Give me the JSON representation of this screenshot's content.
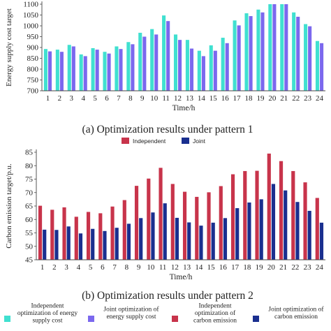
{
  "chart_data": [
    {
      "type": "bar",
      "caption": "(a) Optimization results under pattern 1",
      "xlabel": "Time/h",
      "ylabel": "Energy supply cost target",
      "ylim": [
        700,
        1100
      ],
      "yticks": [
        700,
        750,
        800,
        850,
        900,
        950,
        1000,
        1050,
        1100
      ],
      "categories": [
        "1",
        "2",
        "3",
        "4",
        "5",
        "6",
        "7",
        "8",
        "9",
        "10",
        "11",
        "12",
        "13",
        "14",
        "15",
        "16",
        "17",
        "18",
        "19",
        "20",
        "21",
        "22",
        "23",
        "24"
      ],
      "series": [
        {
          "name": "Independent optimization of energy supply cost",
          "color": "#40e0d0",
          "values": [
            893,
            890,
            912,
            868,
            897,
            880,
            905,
            925,
            968,
            985,
            1048,
            960,
            935,
            885,
            910,
            945,
            1025,
            1058,
            1075,
            1125,
            1125,
            1062,
            1008,
            930
          ]
        },
        {
          "name": "Joint optimization of energy supply cost",
          "color": "#7b68ee",
          "values": [
            882,
            880,
            905,
            860,
            890,
            872,
            893,
            915,
            950,
            960,
            1022,
            935,
            895,
            860,
            885,
            920,
            1002,
            1045,
            1062,
            1125,
            1105,
            1042,
            998,
            920
          ]
        }
      ]
    },
    {
      "type": "bar",
      "caption": "(b) Optimization results under pattern 2",
      "xlabel": "Time/h",
      "ylabel": "Carbon emission target/p.u.",
      "ylim": [
        45,
        85
      ],
      "yticks": [
        45,
        50,
        55,
        60,
        65,
        70,
        75,
        80,
        85
      ],
      "categories": [
        "1",
        "2",
        "3",
        "4",
        "5",
        "6",
        "7",
        "8",
        "9",
        "10",
        "11",
        "12",
        "13",
        "14",
        "15",
        "16",
        "17",
        "18",
        "19",
        "20",
        "21",
        "22",
        "23",
        "24"
      ],
      "legend_labels": [
        "Independent",
        "Joint"
      ],
      "series": [
        {
          "name": "Independent optimization of carbon emission",
          "color": "#c8344b",
          "values": [
            65.1,
            63.6,
            64.5,
            61.0,
            62.8,
            62.3,
            64.8,
            67.2,
            72.5,
            75.2,
            79.2,
            73.2,
            70.3,
            68.4,
            70.1,
            72.4,
            76.8,
            78.0,
            78.1,
            84.5,
            81.7,
            78.0,
            73.8,
            68.0
          ]
        },
        {
          "name": "Joint optimization of carbon emission",
          "color": "#1a2f8f",
          "values": [
            56.2,
            56.1,
            57.4,
            54.8,
            56.5,
            55.7,
            56.9,
            58.4,
            60.5,
            62.6,
            66.0,
            60.6,
            58.9,
            57.7,
            58.8,
            60.5,
            64.2,
            66.3,
            67.5,
            73.2,
            70.8,
            66.5,
            63.2,
            58.8
          ]
        }
      ]
    }
  ],
  "bottom_legend": [
    {
      "label": "Independent optimization of energy supply cost",
      "lines": [
        "Independent",
        "optimization of energy",
        "supply cost"
      ],
      "color": "#40e0d0",
      "icon": "square-marker"
    },
    {
      "label": "Joint optimization of energy supply cost",
      "lines": [
        "Joint optimization of",
        "energy supply cost"
      ],
      "color": "#7b68ee",
      "icon": "square-marker"
    },
    {
      "label": "Independent optimization of carbon emission",
      "lines": [
        "Independent",
        "optimization of",
        "carbon emission"
      ],
      "color": "#c8344b",
      "icon": "square-marker"
    },
    {
      "label": "Joint optimization of carbon emission",
      "lines": [
        "Joint optimization of",
        "carbon emission"
      ],
      "color": "#1a2f8f",
      "icon": "square-marker"
    }
  ]
}
